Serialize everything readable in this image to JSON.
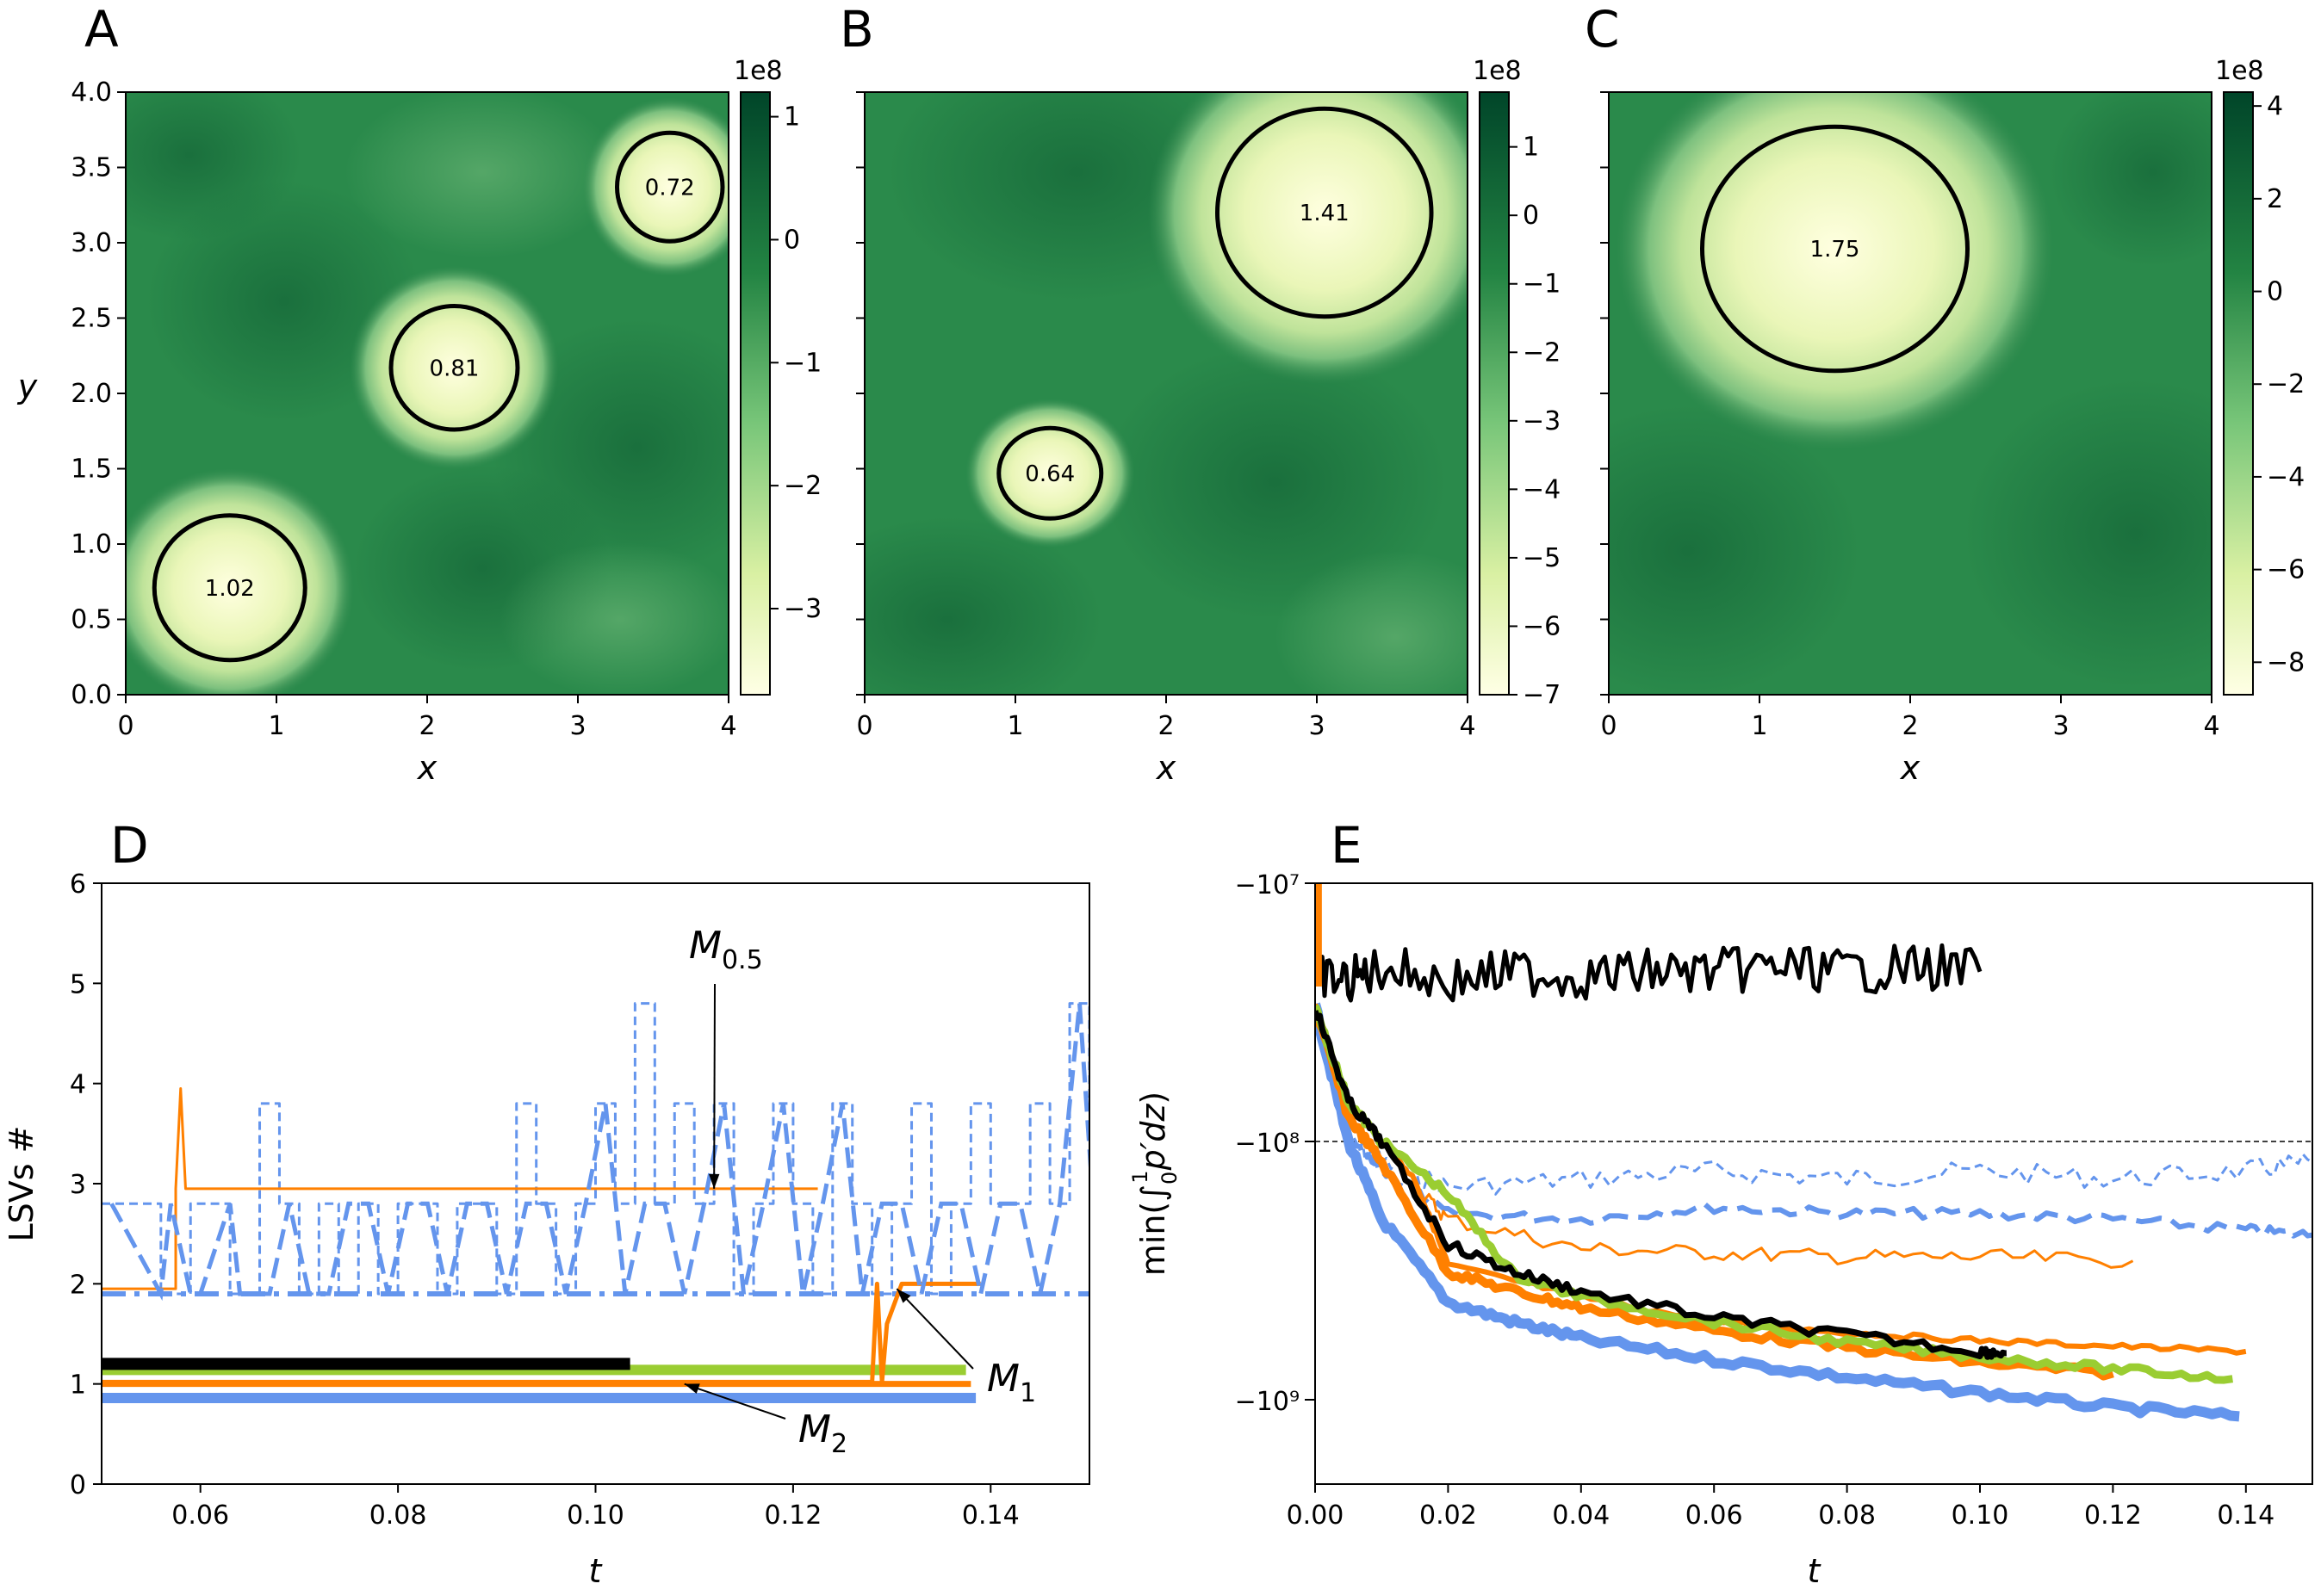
{
  "chart_data": [
    {
      "panel": "A",
      "type": "heatmap",
      "xlabel": "x",
      "ylabel": "y",
      "xlim": [
        0,
        4
      ],
      "ylim": [
        0,
        4
      ],
      "xticks": [
        "0",
        "1",
        "2",
        "3",
        "4"
      ],
      "yticks": [
        "0.0",
        "0.5",
        "1.0",
        "1.5",
        "2.0",
        "2.5",
        "3.0",
        "3.5",
        "4.0"
      ],
      "colorbar": {
        "exponent": "1e8",
        "range": [
          -3.7,
          1.2
        ],
        "ticks": [
          "1",
          "0",
          "−1",
          "−2",
          "−3"
        ]
      },
      "contours": [
        {
          "x": 0.69,
          "y": 0.71,
          "rx": 0.5,
          "ry": 0.48,
          "label": "1.02"
        },
        {
          "x": 2.18,
          "y": 2.17,
          "rx": 0.42,
          "ry": 0.41,
          "label": "0.81"
        },
        {
          "x": 3.61,
          "y": 3.37,
          "rx": 0.35,
          "ry": 0.36,
          "label": "0.72"
        }
      ]
    },
    {
      "panel": "B",
      "type": "heatmap",
      "xlabel": "x",
      "ylabel": "",
      "xlim": [
        0,
        4
      ],
      "ylim": [
        0,
        4
      ],
      "xticks": [
        "0",
        "1",
        "2",
        "3",
        "4"
      ],
      "colorbar": {
        "exponent": "1e8",
        "range": [
          -7,
          1.8
        ],
        "ticks": [
          "1",
          "0",
          "−1",
          "−2",
          "−3",
          "−4",
          "−5",
          "−6",
          "−7"
        ]
      },
      "contours": [
        {
          "x": 1.23,
          "y": 1.47,
          "rx": 0.34,
          "ry": 0.3,
          "label": "0.64"
        },
        {
          "x": 3.05,
          "y": 3.2,
          "rx": 0.71,
          "ry": 0.69,
          "label": "1.41"
        }
      ]
    },
    {
      "panel": "C",
      "type": "heatmap",
      "xlabel": "x",
      "ylabel": "",
      "xlim": [
        0,
        4
      ],
      "ylim": [
        0,
        4
      ],
      "xticks": [
        "0",
        "1",
        "2",
        "3",
        "4"
      ],
      "colorbar": {
        "exponent": "1e8",
        "range": [
          -8.7,
          4.3
        ],
        "ticks": [
          "4",
          "2",
          "0",
          "−2",
          "−4",
          "−6",
          "−8"
        ]
      },
      "contours": [
        {
          "x": 1.5,
          "y": 2.96,
          "rx": 0.88,
          "ry": 0.81,
          "label": "1.75"
        }
      ]
    },
    {
      "panel": "D",
      "type": "line",
      "xlabel": "t",
      "ylabel": "LSVs #",
      "xlim": [
        0.05,
        0.15
      ],
      "ylim": [
        0,
        6
      ],
      "xticks": [
        "0.06",
        "0.08",
        "0.10",
        "0.12",
        "0.14"
      ],
      "yticks": [
        "0",
        "1",
        "2",
        "3",
        "4",
        "5",
        "6"
      ],
      "annotations": [
        {
          "text": "M",
          "sub": "0.5",
          "points_to": [
            0.112,
            2.95
          ]
        },
        {
          "text": "M",
          "sub": "1",
          "points_to": [
            0.1305,
            1.95
          ]
        },
        {
          "text": "M",
          "sub": "2",
          "points_to": [
            0.109,
            1.0
          ]
        }
      ],
      "series": [
        {
          "name": "M0.5 orange",
          "color": "#ff8000",
          "t": [
            0.05,
            0.0575,
            0.0575,
            0.058,
            0.0585,
            0.0585,
            0.1225
          ],
          "values": [
            1.95,
            1.95,
            2.95,
            3.95,
            2.95,
            2.95,
            2.95
          ]
        },
        {
          "name": "M1 orange",
          "color": "#ff8000",
          "t": [
            0.05,
            0.128,
            0.1285,
            0.129,
            0.1295,
            0.131,
            0.132,
            0.139
          ],
          "values": [
            1.02,
            1.02,
            2.0,
            1.02,
            1.6,
            2.0,
            2.0,
            2.0
          ]
        },
        {
          "name": "M2 orange",
          "color": "#ff8000",
          "t": [
            0.05,
            0.138
          ],
          "values": [
            1.0,
            1.0
          ]
        },
        {
          "name": "green",
          "color": "#9acd32",
          "t": [
            0.05,
            0.1375
          ],
          "values": [
            1.14,
            1.14
          ]
        },
        {
          "name": "black",
          "color": "#000000",
          "t": [
            0.05,
            0.1035
          ],
          "values": [
            1.2,
            1.2
          ]
        },
        {
          "name": "blue solid",
          "color": "#6495ed",
          "t": [
            0.05,
            0.1385
          ],
          "values": [
            0.86,
            0.86
          ]
        },
        {
          "name": "blue dash-dot",
          "color": "#6495ed",
          "t": [
            0.05,
            0.15
          ],
          "values": [
            1.9,
            1.9
          ]
        },
        {
          "name": "blue dashed",
          "color": "#6495ed",
          "t": [
            0.05,
            0.055,
            0.056,
            0.058,
            0.059,
            0.062,
            0.063,
            0.066,
            0.068,
            0.07,
            0.072,
            0.074,
            0.076,
            0.078,
            0.08,
            0.082,
            0.084,
            0.086,
            0.088,
            0.09,
            0.092,
            0.094,
            0.096,
            0.098,
            0.1,
            0.102,
            0.104,
            0.106,
            0.108,
            0.11,
            0.112,
            0.114,
            0.116,
            0.118,
            0.12,
            0.122,
            0.124,
            0.126,
            0.128,
            0.13,
            0.132,
            0.134,
            0.136,
            0.138,
            0.14,
            0.142,
            0.144,
            0.146,
            0.148,
            0.15
          ],
          "values": [
            2.8,
            2.8,
            1.9,
            1.9,
            2.8,
            2.8,
            1.9,
            3.8,
            2.8,
            1.9,
            2.8,
            1.9,
            2.8,
            1.9,
            2.8,
            2.8,
            1.9,
            2.8,
            2.8,
            1.9,
            3.8,
            2.8,
            1.9,
            2.8,
            3.8,
            2.8,
            4.8,
            2.8,
            3.8,
            2.8,
            3.8,
            1.9,
            2.8,
            3.8,
            2.8,
            1.9,
            3.8,
            2.8,
            1.9,
            2.8,
            3.8,
            1.9,
            2.8,
            3.8,
            2.8,
            2.8,
            3.8,
            2.8,
            4.8,
            3.8
          ]
        }
      ]
    },
    {
      "panel": "E",
      "type": "line",
      "xlabel": "t",
      "ylabel": "min(∫₀¹p′dz)",
      "yscale": "symlog-negative",
      "xlim": [
        0.0,
        0.15
      ],
      "ylim": [
        -2000000000.0,
        -10000000.0
      ],
      "xticks": [
        "0.00",
        "0.02",
        "0.04",
        "0.06",
        "0.08",
        "0.10",
        "0.12",
        "0.14"
      ],
      "yticks": [
        "−10⁷",
        "−10⁸",
        "−10⁹"
      ],
      "reference_line": {
        "y": -100000000.0,
        "style": "dashed",
        "color": "#000000"
      },
      "series": [
        {
          "name": "black noisy",
          "color": "#000000",
          "t": [
            0.0,
            0.005,
            0.01,
            0.02,
            0.03,
            0.04,
            0.05,
            0.06,
            0.07,
            0.08,
            0.09,
            0.1
          ],
          "values": [
            -23000000.0,
            -24000000.0,
            -21000000.0,
            -24000000.0,
            -22000000.0,
            -23000000.0,
            -22000000.0,
            -22000000.0,
            -21000000.0,
            -22000000.0,
            -21000000.0,
            -22000000.0
          ]
        },
        {
          "name": "black",
          "color": "#000000",
          "t": [
            0.0,
            0.005,
            0.01,
            0.02,
            0.03,
            0.04,
            0.06,
            0.08,
            0.1,
            0.104
          ],
          "values": [
            -30000000.0,
            -70000000.0,
            -100000000.0,
            -250000000.0,
            -320000000.0,
            -380000000.0,
            -480000000.0,
            -560000000.0,
            -650000000.0,
            -660000000.0
          ]
        },
        {
          "name": "green",
          "color": "#9acd32",
          "t": [
            0.0,
            0.005,
            0.01,
            0.02,
            0.03,
            0.04,
            0.06,
            0.08,
            0.1,
            0.12,
            0.138
          ],
          "values": [
            -30000000.0,
            -70000000.0,
            -100000000.0,
            -160000000.0,
            -330000000.0,
            -400000000.0,
            -500000000.0,
            -600000000.0,
            -680000000.0,
            -760000000.0,
            -830000000.0
          ]
        },
        {
          "name": "orange thick",
          "color": "#ff8000",
          "t": [
            0.0,
            0.005,
            0.01,
            0.02,
            0.03,
            0.04,
            0.06,
            0.08,
            0.1,
            0.12
          ],
          "values": [
            -30000000.0,
            -80000000.0,
            -120000000.0,
            -320000000.0,
            -380000000.0,
            -440000000.0,
            -540000000.0,
            -630000000.0,
            -720000000.0,
            -790000000.0
          ]
        },
        {
          "name": "orange thin",
          "color": "#ff8000",
          "t": [
            0.0,
            0.005,
            0.01,
            0.015,
            0.02,
            0.04,
            0.06,
            0.08,
            0.1,
            0.12,
            0.14
          ],
          "values": [
            -30000000.0,
            -70000000.0,
            -100000000.0,
            -140000000.0,
            -300000000.0,
            -400000000.0,
            -500000000.0,
            -550000000.0,
            -590000000.0,
            -620000000.0,
            -650000000.0
          ]
        },
        {
          "name": "orange faint",
          "color": "#ff8000",
          "t": [
            0.015,
            0.02,
            0.04,
            0.06,
            0.08,
            0.1,
            0.123
          ],
          "values": [
            -150000000.0,
            -200000000.0,
            -260000000.0,
            -270000000.0,
            -280000000.0,
            -280000000.0,
            -290000000.0
          ]
        },
        {
          "name": "blue thick",
          "color": "#6495ed",
          "t": [
            0.0,
            0.005,
            0.01,
            0.02,
            0.03,
            0.04,
            0.06,
            0.08,
            0.1,
            0.12,
            0.139
          ],
          "values": [
            -30000000.0,
            -100000000.0,
            -200000000.0,
            -420000000.0,
            -500000000.0,
            -580000000.0,
            -700000000.0,
            -820000000.0,
            -940000000.0,
            -1070000000.0,
            -1160000000.0
          ]
        },
        {
          "name": "blue dashed",
          "color": "#6495ed",
          "t": [
            0.005,
            0.01,
            0.02,
            0.04,
            0.06,
            0.08,
            0.1,
            0.12,
            0.14,
            0.15
          ],
          "values": [
            -100000000.0,
            -130000000.0,
            -190000000.0,
            -200000000.0,
            -180000000.0,
            -190000000.0,
            -190000000.0,
            -200000000.0,
            -220000000.0,
            -230000000.0
          ]
        },
        {
          "name": "blue thin dashed",
          "color": "#6495ed",
          "t": [
            0.005,
            0.01,
            0.02,
            0.04,
            0.06,
            0.08,
            0.1,
            0.12,
            0.14,
            0.15
          ],
          "values": [
            -100000000.0,
            -120000000.0,
            -150000000.0,
            -140000000.0,
            -130000000.0,
            -140000000.0,
            -130000000.0,
            -140000000.0,
            -130000000.0,
            -120000000.0
          ]
        }
      ]
    }
  ]
}
